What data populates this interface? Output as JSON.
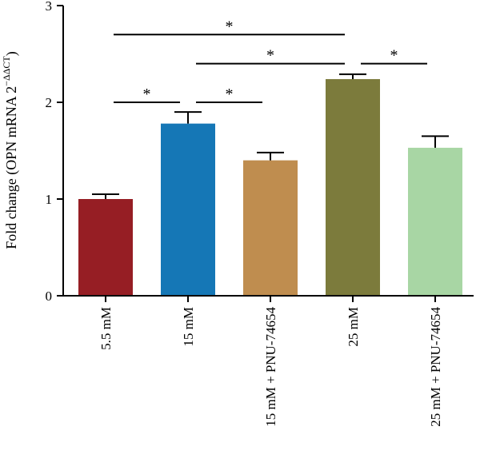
{
  "chart_data": {
    "type": "bar",
    "title": "",
    "xlabel": "",
    "ylabel": "Fold change (OPN mRNA 2",
    "ylabel_superscript": "−ΔΔCT",
    "ylabel_close": ")",
    "ylim": [
      0,
      3
    ],
    "yticks": [
      "0",
      "1",
      "2",
      "3"
    ],
    "categories": [
      "5.5 mM",
      "15 mM",
      "15 mM + PNU-74654",
      "25 mM",
      "25 mM + PNU-74654"
    ],
    "values": [
      1.0,
      1.78,
      1.4,
      2.24,
      1.53
    ],
    "errors": [
      0.05,
      0.12,
      0.08,
      0.05,
      0.12
    ],
    "colors": [
      "#961e24",
      "#1577b6",
      "#bf8d4f",
      "#7c7b3c",
      "#a8d6a4"
    ],
    "significance": [
      {
        "from": 0,
        "to": 1,
        "label": "*",
        "y": 2.0
      },
      {
        "from": 1,
        "to": 2,
        "label": "*",
        "y": 2.0
      },
      {
        "from": 0,
        "to": 3,
        "label": "*",
        "y": 2.7
      },
      {
        "from": 1,
        "to": 3,
        "label": "*",
        "y": 2.4
      },
      {
        "from": 3,
        "to": 4,
        "label": "*",
        "y": 2.4
      }
    ]
  }
}
